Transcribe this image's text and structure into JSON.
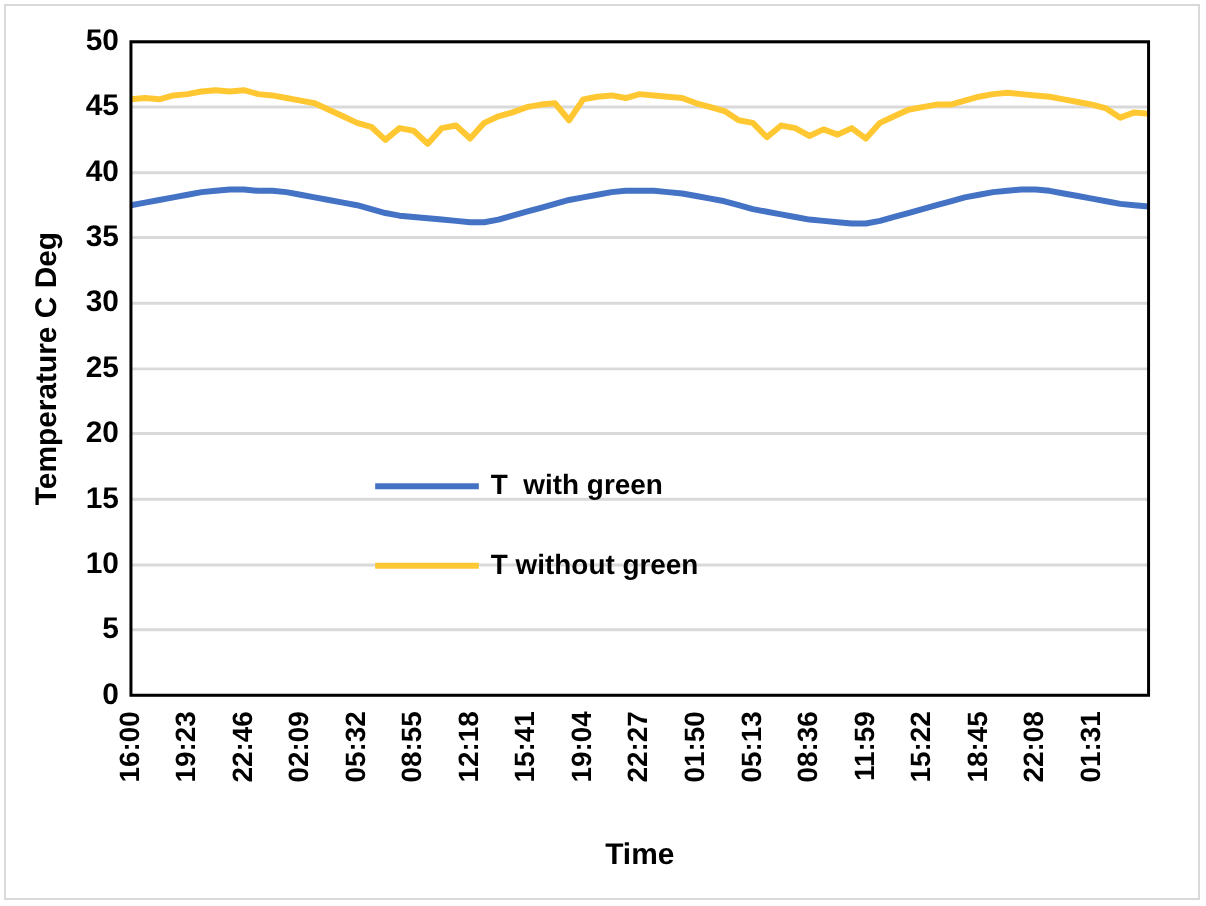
{
  "chart_data": {
    "type": "line",
    "xlabel": "Time",
    "ylabel": "Temperature C Deg",
    "categories": [
      "16:00",
      null,
      null,
      null,
      "19:23",
      null,
      null,
      null,
      "22:46",
      null,
      null,
      null,
      "02:09",
      null,
      null,
      null,
      "05:32",
      null,
      null,
      null,
      "08:55",
      null,
      null,
      null,
      "12:18",
      null,
      null,
      null,
      "15:41",
      null,
      null,
      null,
      "19:04",
      null,
      null,
      null,
      "22:27",
      null,
      null,
      null,
      "01:50",
      null,
      null,
      null,
      "05:13",
      null,
      null,
      null,
      "08:36",
      null,
      null,
      null,
      "11:59",
      null,
      null,
      null,
      "15:22",
      null,
      null,
      null,
      "18:45",
      null,
      null,
      null,
      "22:08",
      null,
      null,
      null,
      "01:31",
      null,
      null,
      null,
      null
    ],
    "series": [
      {
        "name": "T  with green",
        "color": "#4472c4",
        "values": [
          37.5,
          37.7,
          37.9,
          38.1,
          38.3,
          38.5,
          38.6,
          38.7,
          38.7,
          38.6,
          38.6,
          38.5,
          38.3,
          38.1,
          37.9,
          37.7,
          37.5,
          37.2,
          36.9,
          36.7,
          36.6,
          36.5,
          36.4,
          36.3,
          36.2,
          36.2,
          36.4,
          36.7,
          37.0,
          37.3,
          37.6,
          37.9,
          38.1,
          38.3,
          38.5,
          38.6,
          38.6,
          38.6,
          38.5,
          38.4,
          38.2,
          38.0,
          37.8,
          37.5,
          37.2,
          37.0,
          36.8,
          36.6,
          36.4,
          36.3,
          36.2,
          36.1,
          36.1,
          36.3,
          36.6,
          36.9,
          37.2,
          37.5,
          37.8,
          38.1,
          38.3,
          38.5,
          38.6,
          38.7,
          38.7,
          38.6,
          38.4,
          38.2,
          38.0,
          37.8,
          37.6,
          37.5,
          37.4
        ]
      },
      {
        "name": "T without green",
        "color": "#ffc832",
        "values": [
          45.6,
          45.7,
          45.6,
          45.9,
          46.0,
          46.2,
          46.3,
          46.2,
          46.3,
          46.0,
          45.9,
          45.7,
          45.5,
          45.3,
          44.8,
          44.3,
          43.8,
          43.5,
          42.5,
          43.4,
          43.2,
          42.2,
          43.4,
          43.6,
          42.6,
          43.8,
          44.3,
          44.6,
          45.0,
          45.2,
          45.3,
          44.0,
          45.6,
          45.8,
          45.9,
          45.7,
          46.0,
          45.9,
          45.8,
          45.7,
          45.3,
          45.0,
          44.7,
          44.0,
          43.8,
          42.7,
          43.6,
          43.4,
          42.8,
          43.3,
          42.9,
          43.4,
          42.6,
          43.8,
          44.3,
          44.8,
          45.0,
          45.2,
          45.2,
          45.5,
          45.8,
          46.0,
          46.1,
          46.0,
          45.9,
          45.8,
          45.6,
          45.4,
          45.2,
          44.9,
          44.2,
          44.6,
          44.5
        ]
      }
    ],
    "ylim": [
      0,
      50
    ],
    "yticks": [
      0,
      5,
      10,
      15,
      20,
      25,
      30,
      35,
      40,
      45,
      50
    ],
    "grid": "y",
    "legend": "center",
    "marker": "none",
    "line_style": "solid"
  }
}
